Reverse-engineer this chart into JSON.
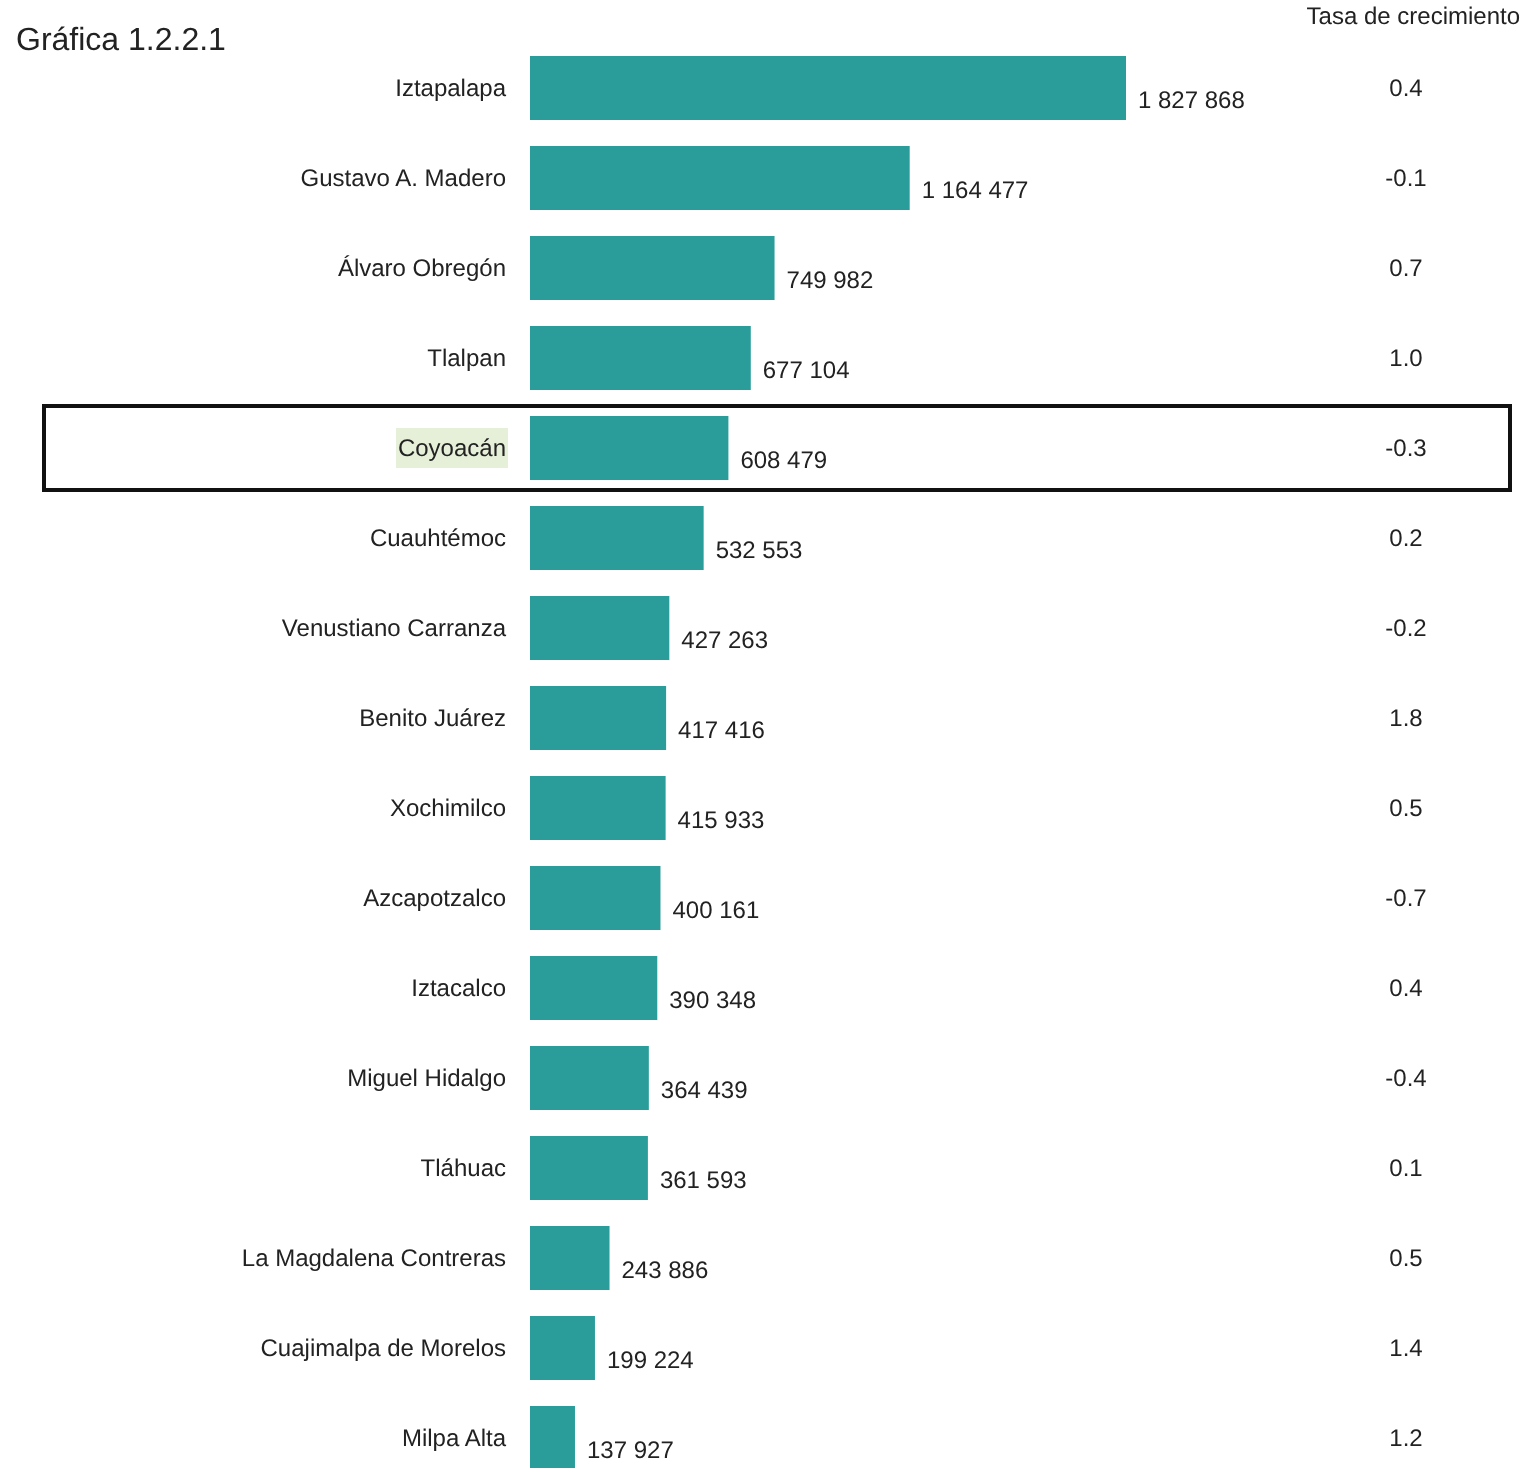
{
  "chart_data": [
    {
      "type": "bar",
      "orientation": "horizontal",
      "title": "Gráfica 1.2.2.1",
      "data_labels": true,
      "color": "#2a9d9b",
      "categories": [
        "Iztapalapa",
        "Gustavo A. Madero",
        "Álvaro Obregón",
        "Tlalpan",
        "Coyoacán",
        "Cuauhtémoc",
        "Venustiano Carranza",
        "Benito Juárez",
        "Xochimilco",
        "Azcapotzalco",
        "Iztacalco",
        "Miguel Hidalgo",
        "Tláhuac",
        "La Magdalena Contreras",
        "Cuajimalpa de Morelos",
        "Milpa Alta"
      ],
      "values": [
        1827868,
        1164477,
        749982,
        677104,
        608479,
        532553,
        427263,
        417416,
        415933,
        400161,
        390348,
        364439,
        361593,
        243886,
        199224,
        137927
      ]
    },
    {
      "type": "other",
      "title": "Tasa de crecimiento",
      "categories": [
        null,
        null,
        null,
        null,
        null,
        null,
        null,
        null,
        null,
        null,
        null,
        null,
        null,
        null,
        null,
        null
      ],
      "values": [
        0.4,
        -0.1,
        0.7,
        1.0,
        -0.3,
        0.2,
        -0.2,
        1.8,
        0.5,
        -0.7,
        0.4,
        -0.4,
        0.1,
        0.5,
        1.4,
        1.2
      ],
      "value_labels": [
        "0.4",
        "-0.1",
        "0.7",
        "1.0",
        "-0.3",
        "0.2",
        "-0.2",
        "1.8",
        "0.5",
        "-0.7",
        "0.4",
        "-0.4",
        "0.1",
        "0.5",
        "1.4",
        "1.2"
      ]
    }
  ]
}
